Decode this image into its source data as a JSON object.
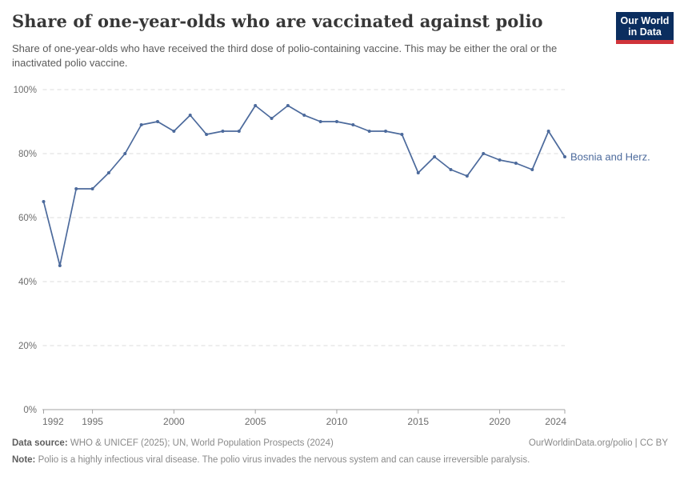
{
  "header": {
    "title": "Share of one-year-olds who are vaccinated against polio",
    "subtitle": "Share of one-year-olds who have received the third dose of polio-containing vaccine. This may be either the oral or the inactivated polio vaccine.",
    "logo": {
      "line1": "Our World",
      "line2": "in Data",
      "bg_color": "#0b2e5f",
      "bar_color": "#d0343a"
    }
  },
  "chart_data": {
    "type": "line",
    "title": "Share of one-year-olds who are vaccinated against polio",
    "series": [
      {
        "name": "Bosnia and Herz.",
        "x": [
          1992,
          1993,
          1994,
          1995,
          1996,
          1997,
          1998,
          1999,
          2000,
          2001,
          2002,
          2003,
          2004,
          2005,
          2006,
          2007,
          2008,
          2009,
          2010,
          2011,
          2012,
          2013,
          2014,
          2015,
          2016,
          2017,
          2018,
          2019,
          2020,
          2021,
          2022,
          2023,
          2024
        ],
        "values": [
          65,
          45,
          69,
          69,
          74,
          80,
          89,
          90,
          87,
          92,
          86,
          87,
          87,
          95,
          91,
          95,
          92,
          90,
          90,
          89,
          87,
          87,
          86,
          74,
          79,
          75,
          73,
          80,
          78,
          77,
          75,
          87,
          79
        ],
        "color": "#4c6a9c"
      }
    ],
    "xlabel": "",
    "ylabel": "",
    "xlim": [
      1992,
      2024
    ],
    "ylim": [
      0,
      100
    ],
    "xticks": [
      1992,
      1995,
      2000,
      2005,
      2010,
      2015,
      2020,
      2024
    ],
    "yticks": [
      0,
      20,
      40,
      60,
      80,
      100
    ],
    "ytick_labels": [
      "0%",
      "20%",
      "40%",
      "60%",
      "80%",
      "100%"
    ],
    "grid": "horizontal-dashed",
    "legend_position": "end-of-line-label",
    "unit": "%"
  },
  "footer": {
    "data_source_label": "Data source:",
    "data_source": "WHO & UNICEF (2025); UN, World Population Prospects (2024)",
    "attribution": "OurWorldinData.org/polio | CC BY",
    "note_label": "Note:",
    "note": "Polio is a highly infectious viral disease. The polio virus invades the nervous system and can cause irreversible paralysis."
  }
}
